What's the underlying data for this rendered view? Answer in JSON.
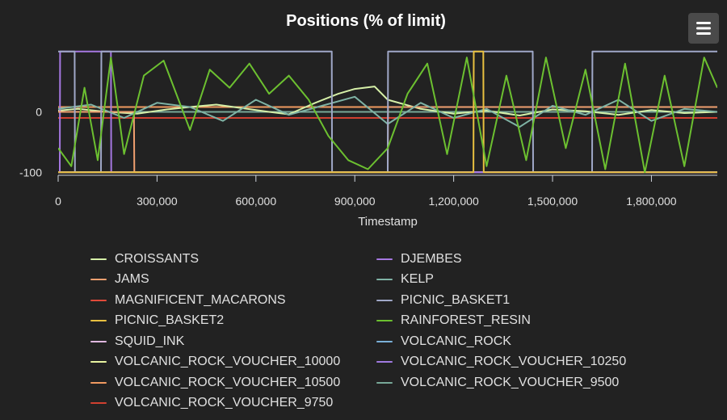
{
  "menu": {
    "icon": "hamburger-menu-icon"
  },
  "chart_data": {
    "type": "line",
    "title": "Positions (% of limit)",
    "xlabel": "Timestamp",
    "ylabel": "",
    "xlim": [
      0,
      1999900
    ],
    "ylim": [
      -105,
      105
    ],
    "y_ticks": [
      {
        "value": 0,
        "label": "0"
      },
      {
        "value": -100,
        "label": "-100"
      }
    ],
    "x_ticks": [
      {
        "value": 0,
        "label": "0"
      },
      {
        "value": 300000,
        "label": "300,000"
      },
      {
        "value": 600000,
        "label": "600,000"
      },
      {
        "value": 900000,
        "label": "900,000"
      },
      {
        "value": 1200000,
        "label": "1,200,000"
      },
      {
        "value": 1500000,
        "label": "1,500,000"
      },
      {
        "value": 1800000,
        "label": "1,800,000"
      }
    ],
    "grid": false,
    "legend_position": "bottom",
    "series": [
      {
        "name": "CROISSANTS",
        "color": "#d6f0a8",
        "x": [
          0,
          60000,
          150000,
          240000,
          330000,
          400000,
          480000,
          560000,
          640000,
          700000,
          780000,
          850000,
          900000,
          960000,
          1000000,
          1100000,
          1200000,
          1300000,
          1400000,
          1500000,
          1600000,
          1700000,
          1800000,
          1900000,
          1999900
        ],
        "y": [
          2,
          5,
          0,
          -3,
          4,
          8,
          12,
          6,
          0,
          -4,
          15,
          30,
          38,
          42,
          20,
          5,
          -3,
          2,
          -6,
          4,
          1,
          -5,
          3,
          -2,
          0
        ]
      },
      {
        "name": "DJEMBES",
        "color": "#a678e2",
        "x": [
          0,
          5000,
          6000,
          160000,
          161000,
          1690000,
          1691000,
          1999900
        ],
        "y": [
          -100,
          -100,
          100,
          100,
          -100,
          -100,
          -100,
          -100
        ]
      },
      {
        "name": "JAMS",
        "color": "#f0a070",
        "x": [
          0,
          230000,
          231000,
          1000000,
          1001000,
          1999900
        ],
        "y": [
          0,
          0,
          -100,
          -100,
          8,
          8
        ]
      },
      {
        "name": "KELP",
        "color": "#7fb3a5",
        "x": [
          0,
          100000,
          200000,
          300000,
          400000,
          500000,
          600000,
          700000,
          800000,
          900000,
          1000000,
          1100000,
          1200000,
          1300000,
          1400000,
          1500000,
          1600000,
          1700000,
          1800000,
          1900000,
          1999900
        ],
        "y": [
          5,
          12,
          -10,
          15,
          8,
          -15,
          20,
          -5,
          10,
          25,
          -20,
          15,
          -10,
          5,
          -25,
          10,
          -5,
          20,
          -15,
          5,
          0
        ]
      },
      {
        "name": "MAGNIFICENT_MACARONS",
        "color": "#e04a3a",
        "x": [
          0,
          1999900
        ],
        "y": [
          -10,
          -10
        ]
      },
      {
        "name": "PICNIC_BASKET1",
        "color": "#a0a8c8",
        "x": [
          0,
          50000,
          51000,
          130000,
          131000,
          250000,
          251000,
          830000,
          831000,
          1000000,
          1001000,
          1440000,
          1441000,
          1620000,
          1621000,
          1999900
        ],
        "y": [
          100,
          100,
          -100,
          -100,
          100,
          100,
          100,
          100,
          -100,
          -100,
          100,
          100,
          -100,
          -100,
          100,
          100
        ]
      },
      {
        "name": "PICNIC_BASKET2",
        "color": "#e8c040",
        "x": [
          0,
          720000,
          721000,
          1260000,
          1261000,
          1290000,
          1291000,
          1999900
        ],
        "y": [
          -100,
          -100,
          -100,
          -100,
          100,
          100,
          -100,
          -100
        ]
      },
      {
        "name": "RAINFOREST_RESIN",
        "color": "#6cc030",
        "x": [
          0,
          40000,
          80000,
          120000,
          160000,
          200000,
          260000,
          320000,
          400000,
          460000,
          520000,
          580000,
          640000,
          700000,
          760000,
          820000,
          880000,
          940000,
          1000000,
          1060000,
          1120000,
          1180000,
          1240000,
          1300000,
          1360000,
          1420000,
          1480000,
          1540000,
          1600000,
          1660000,
          1720000,
          1780000,
          1840000,
          1900000,
          1960000,
          1999900
        ],
        "y": [
          -60,
          -90,
          40,
          -80,
          90,
          -70,
          60,
          85,
          -30,
          70,
          40,
          80,
          30,
          60,
          20,
          -40,
          -80,
          -95,
          -60,
          30,
          80,
          -70,
          90,
          -90,
          60,
          -80,
          90,
          -60,
          70,
          -95,
          80,
          -100,
          60,
          -90,
          90,
          40
        ]
      },
      {
        "name": "SQUID_INK",
        "color": "#e0b8e0",
        "x": [
          0,
          1999900
        ],
        "y": [
          -100,
          -100
        ]
      },
      {
        "name": "VOLCANIC_ROCK",
        "color": "#7ab0d8",
        "x": [
          0,
          1999900
        ],
        "y": [
          0,
          0
        ]
      },
      {
        "name": "VOLCANIC_ROCK_VOUCHER_10000",
        "color": "#e8f4a0",
        "x": [
          0,
          1999900
        ],
        "y": [
          -100,
          -100
        ]
      },
      {
        "name": "VOLCANIC_ROCK_VOUCHER_10250",
        "color": "#a07ae0",
        "x": [
          0,
          1999900
        ],
        "y": [
          -100,
          -100
        ]
      },
      {
        "name": "VOLCANIC_ROCK_VOUCHER_10500",
        "color": "#f09a60",
        "x": [
          0,
          1999900
        ],
        "y": [
          8,
          8
        ]
      },
      {
        "name": "VOLCANIC_ROCK_VOUCHER_9500",
        "color": "#78a898",
        "x": [
          0,
          1999900
        ],
        "y": [
          0,
          0
        ]
      },
      {
        "name": "VOLCANIC_ROCK_VOUCHER_9750",
        "color": "#d04030",
        "x": [
          0,
          1999900
        ],
        "y": [
          -10,
          -10
        ]
      }
    ]
  }
}
